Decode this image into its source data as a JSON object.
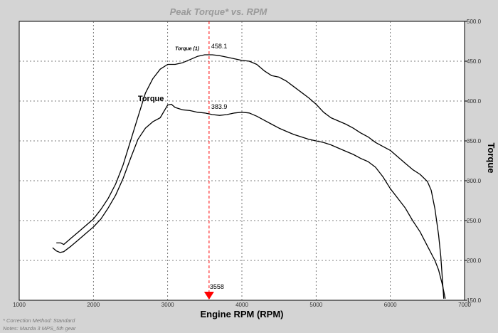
{
  "chart_data": {
    "type": "line",
    "title": "Peak Torque* vs. RPM",
    "xlabel": "Engine RPM (RPM)",
    "ylabel": "Torque",
    "xlim": [
      1000,
      7000
    ],
    "ylim": [
      150,
      500
    ],
    "x_ticks": [
      "1000",
      "2000",
      "3000",
      "4000",
      "5000",
      "6000",
      "7000"
    ],
    "y_ticks": [
      "150.0",
      "200.0",
      "250.0",
      "300.0",
      "350.0",
      "400.0",
      "450.0",
      "500.0"
    ],
    "grid": true,
    "series": [
      {
        "name": "Torque (1)",
        "peak": "458.1",
        "points": [
          [
            1500,
            222
          ],
          [
            1560,
            222
          ],
          [
            1600,
            220
          ],
          [
            1700,
            228
          ],
          [
            1800,
            236
          ],
          [
            1900,
            244
          ],
          [
            2000,
            252
          ],
          [
            2100,
            264
          ],
          [
            2200,
            278
          ],
          [
            2300,
            296
          ],
          [
            2400,
            320
          ],
          [
            2500,
            350
          ],
          [
            2600,
            380
          ],
          [
            2700,
            410
          ],
          [
            2800,
            428
          ],
          [
            2900,
            440
          ],
          [
            3000,
            446
          ],
          [
            3100,
            446
          ],
          [
            3200,
            448
          ],
          [
            3300,
            452
          ],
          [
            3400,
            456
          ],
          [
            3500,
            458
          ],
          [
            3600,
            458
          ],
          [
            3700,
            457
          ],
          [
            3800,
            455
          ],
          [
            3900,
            453
          ],
          [
            4000,
            451
          ],
          [
            4100,
            450
          ],
          [
            4200,
            446
          ],
          [
            4300,
            438
          ],
          [
            4400,
            432
          ],
          [
            4500,
            430
          ],
          [
            4600,
            425
          ],
          [
            4700,
            418
          ],
          [
            4800,
            411
          ],
          [
            4900,
            404
          ],
          [
            5000,
            396
          ],
          [
            5100,
            386
          ],
          [
            5200,
            379
          ],
          [
            5300,
            375
          ],
          [
            5400,
            371
          ],
          [
            5500,
            366
          ],
          [
            5600,
            360
          ],
          [
            5700,
            355
          ],
          [
            5800,
            348
          ],
          [
            5900,
            343
          ],
          [
            6000,
            338
          ],
          [
            6100,
            330
          ],
          [
            6200,
            322
          ],
          [
            6300,
            314
          ],
          [
            6400,
            308
          ],
          [
            6500,
            299
          ],
          [
            6550,
            288
          ],
          [
            6600,
            265
          ],
          [
            6650,
            232
          ],
          [
            6680,
            205
          ],
          [
            6700,
            178
          ],
          [
            6720,
            152
          ]
        ]
      },
      {
        "name": "Torque",
        "peak": "383.9",
        "points": [
          [
            1450,
            216
          ],
          [
            1500,
            212
          ],
          [
            1550,
            210
          ],
          [
            1600,
            211
          ],
          [
            1700,
            218
          ],
          [
            1800,
            226
          ],
          [
            1900,
            234
          ],
          [
            2000,
            242
          ],
          [
            2100,
            252
          ],
          [
            2200,
            266
          ],
          [
            2300,
            282
          ],
          [
            2400,
            303
          ],
          [
            2500,
            328
          ],
          [
            2600,
            352
          ],
          [
            2700,
            366
          ],
          [
            2800,
            374
          ],
          [
            2900,
            379
          ],
          [
            3000,
            395
          ],
          [
            3050,
            396
          ],
          [
            3100,
            392
          ],
          [
            3200,
            389
          ],
          [
            3300,
            388
          ],
          [
            3400,
            386
          ],
          [
            3500,
            385
          ],
          [
            3600,
            383
          ],
          [
            3700,
            382
          ],
          [
            3800,
            383
          ],
          [
            3900,
            385
          ],
          [
            4000,
            386
          ],
          [
            4100,
            385
          ],
          [
            4200,
            381
          ],
          [
            4300,
            376
          ],
          [
            4400,
            371
          ],
          [
            4500,
            366
          ],
          [
            4600,
            362
          ],
          [
            4700,
            358
          ],
          [
            4800,
            355
          ],
          [
            4900,
            352
          ],
          [
            5000,
            350
          ],
          [
            5100,
            348
          ],
          [
            5200,
            345
          ],
          [
            5300,
            341
          ],
          [
            5400,
            337
          ],
          [
            5500,
            333
          ],
          [
            5600,
            328
          ],
          [
            5700,
            324
          ],
          [
            5800,
            317
          ],
          [
            5900,
            305
          ],
          [
            6000,
            290
          ],
          [
            6100,
            278
          ],
          [
            6200,
            266
          ],
          [
            6300,
            250
          ],
          [
            6400,
            236
          ],
          [
            6500,
            218
          ],
          [
            6600,
            200
          ],
          [
            6650,
            188
          ],
          [
            6700,
            170
          ],
          [
            6740,
            152
          ]
        ]
      }
    ],
    "annotations": {
      "marker_rpm": "3558",
      "curve_label": "Torque",
      "peak1_label": "Torque (1)",
      "peak1_value": "458.1",
      "peak2_value": "383.9"
    }
  },
  "notes": {
    "correction": "* Correction Method: Standard",
    "vehicle": "Notes: Mazda 3 MPS_5th gear"
  },
  "colors": {
    "background": "#d4d4d4",
    "plot": "#ffffff",
    "marker": "#ff0000",
    "curve": "#000000"
  }
}
